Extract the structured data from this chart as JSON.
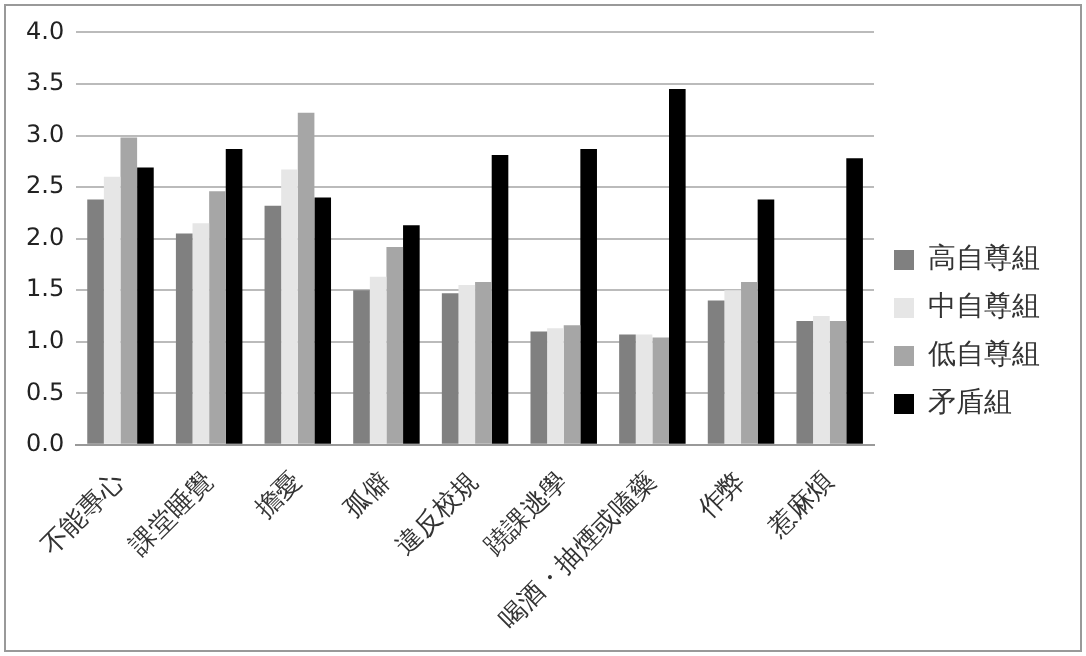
{
  "chart_data": {
    "type": "bar",
    "categories": [
      "不能專心",
      "課堂睡覺",
      "擔憂",
      "孤僻",
      "違反校規",
      "蹺課逃學",
      "喝酒・抽煙或嗑藥",
      "作弊",
      "惹麻煩"
    ],
    "series": [
      {
        "name": "高自尊組",
        "color": "#808080",
        "values": [
          2.38,
          2.05,
          2.32,
          1.5,
          1.47,
          1.1,
          1.07,
          1.4,
          1.2
        ]
      },
      {
        "name": "中自尊組",
        "color": "#e6e6e6",
        "values": [
          2.6,
          2.15,
          2.67,
          1.63,
          1.55,
          1.13,
          1.07,
          1.5,
          1.25
        ]
      },
      {
        "name": "低自尊組",
        "color": "#a6a6a6",
        "values": [
          2.98,
          2.46,
          3.22,
          1.92,
          1.58,
          1.16,
          1.04,
          1.58,
          1.2
        ]
      },
      {
        "name": "矛盾組",
        "color": "#000000",
        "values": [
          2.69,
          2.87,
          2.4,
          2.13,
          2.81,
          2.87,
          3.45,
          2.38,
          2.78
        ]
      }
    ],
    "ylim": [
      0,
      4
    ],
    "yticks": [
      {
        "value": 0,
        "label": "0.0"
      },
      0.5,
      {
        "value": 1,
        "label": "1.0"
      },
      1.5,
      {
        "value": 2,
        "label": "2.0"
      },
      2.5,
      {
        "value": 3,
        "label": "3.0"
      },
      3.5,
      {
        "value": 4,
        "label": "4.0"
      }
    ],
    "grid": "y",
    "legend": "right"
  }
}
